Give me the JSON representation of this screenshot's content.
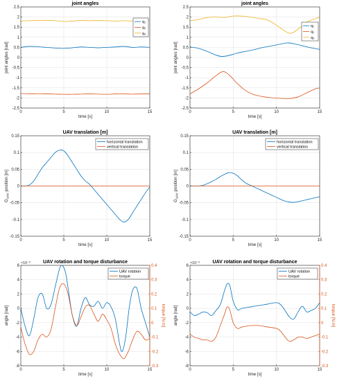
{
  "colors": {
    "blue": "#0072BD",
    "orange": "#D95319",
    "yellow": "#EDB120",
    "axis": "#262626"
  },
  "chart_data": [
    {
      "id": "p1",
      "type": "line",
      "title": "joint angles",
      "xlabel": "time [s]",
      "ylabel": "joint angles [rad]",
      "xlim": [
        0,
        15
      ],
      "ylim": [
        -2.5,
        2.5
      ],
      "xticks": [
        0,
        5,
        10,
        15
      ],
      "xtick_labels": [
        "0",
        "5",
        "10",
        "15"
      ],
      "yticks": [
        -2.5,
        -2,
        -1.5,
        -1,
        -0.5,
        0,
        0.5,
        1,
        1.5,
        2,
        2.5
      ],
      "ytick_labels": [
        "-2.5",
        "-2",
        "-1.5",
        "-1",
        "-0.5",
        "0",
        "0.5",
        "1",
        "1.5",
        "2",
        "2.5"
      ],
      "grid": true,
      "legend_position": "top-right",
      "series": [
        {
          "name": "q₁",
          "color": "blue",
          "x": [
            0,
            1,
            2,
            3,
            4,
            5,
            6,
            7,
            8,
            9,
            10,
            11,
            12,
            13,
            14,
            15
          ],
          "y": [
            0.5,
            0.55,
            0.53,
            0.5,
            0.47,
            0.45,
            0.48,
            0.52,
            0.5,
            0.48,
            0.5,
            0.52,
            0.55,
            0.5,
            0.52,
            0.5
          ]
        },
        {
          "name": "q₂",
          "color": "orange",
          "x": [
            0,
            1,
            2,
            3,
            4,
            5,
            6,
            7,
            8,
            9,
            10,
            11,
            12,
            13,
            14,
            15
          ],
          "y": [
            -1.78,
            -1.8,
            -1.79,
            -1.8,
            -1.81,
            -1.82,
            -1.82,
            -1.81,
            -1.8,
            -1.81,
            -1.82,
            -1.8,
            -1.8,
            -1.81,
            -1.8,
            -1.8
          ]
        },
        {
          "name": "q₃",
          "color": "yellow",
          "x": [
            0,
            1,
            2,
            3,
            4,
            5,
            6,
            7,
            8,
            9,
            10,
            11,
            12,
            13,
            14,
            15
          ],
          "y": [
            1.8,
            1.82,
            1.83,
            1.83,
            1.82,
            1.78,
            1.8,
            1.83,
            1.82,
            1.83,
            1.82,
            1.8,
            1.82,
            1.8,
            1.82,
            1.85
          ]
        }
      ]
    },
    {
      "id": "p2",
      "type": "line",
      "title": "joint angles",
      "xlabel": "time [s]",
      "ylabel": "joint angles [rad]",
      "xlim": [
        0,
        15
      ],
      "ylim": [
        -2.5,
        2.5
      ],
      "xticks": [
        0,
        5,
        10,
        15
      ],
      "xtick_labels": [
        "0",
        "5",
        "10",
        "15"
      ],
      "yticks": [
        -2.5,
        -2,
        -1.5,
        -1,
        -0.5,
        0,
        0.5,
        1,
        1.5,
        2,
        2.5
      ],
      "ytick_labels": [
        "-2.5",
        "-2",
        "-1.5",
        "-1",
        "-0.5",
        "0",
        "0.5",
        "1",
        "1.5",
        "2",
        "2.5"
      ],
      "grid": true,
      "legend_position": "top-right",
      "series": [
        {
          "name": "q₁",
          "color": "blue",
          "x": [
            0,
            1,
            2,
            3,
            3.7,
            4.5,
            5.5,
            7,
            8.5,
            10,
            11.2,
            12,
            13,
            14,
            15
          ],
          "y": [
            0.52,
            0.45,
            0.3,
            0.12,
            0.05,
            0.1,
            0.22,
            0.35,
            0.5,
            0.62,
            0.72,
            0.68,
            0.58,
            0.48,
            0.4
          ]
        },
        {
          "name": "q₂",
          "color": "orange",
          "x": [
            0,
            1,
            2,
            3,
            3.8,
            4.5,
            5.5,
            6.5,
            7.5,
            9,
            10.5,
            11.5,
            12.5,
            13.5,
            14.5,
            15
          ],
          "y": [
            -1.8,
            -1.55,
            -1.25,
            -0.9,
            -0.7,
            -0.85,
            -1.3,
            -1.65,
            -1.85,
            -1.97,
            -2.02,
            -2.03,
            -1.95,
            -1.75,
            -1.55,
            -1.5
          ]
        },
        {
          "name": "q₃",
          "color": "yellow",
          "x": [
            0,
            1,
            2,
            3,
            4,
            5,
            6,
            7,
            8,
            9,
            10,
            11,
            11.7,
            12.5,
            13.5,
            14.5,
            15
          ],
          "y": [
            1.82,
            1.88,
            1.98,
            2.0,
            1.98,
            2.05,
            2.05,
            2.0,
            1.93,
            1.85,
            1.6,
            1.3,
            1.2,
            1.4,
            1.75,
            1.92,
            2.0
          ]
        }
      ]
    },
    {
      "id": "p3",
      "type": "line",
      "title": "UAV translation [m]",
      "xlabel": "time [s]",
      "ylabel": "G_UAV position [m]",
      "xlim": [
        0,
        15
      ],
      "ylim": [
        -0.15,
        0.15
      ],
      "xticks": [
        0,
        5,
        10,
        15
      ],
      "xtick_labels": [
        "0",
        "5",
        "10",
        "15"
      ],
      "yticks": [
        -0.15,
        -0.1,
        -0.05,
        0,
        0.05,
        0.1,
        0.15
      ],
      "ytick_labels": [
        "-0.15",
        "-0.1",
        "-0.05",
        "0",
        "0.05",
        "0.1",
        "0.15"
      ],
      "grid": true,
      "legend_position": "top-right",
      "series": [
        {
          "name": "horizontal translation",
          "color": "blue",
          "x": [
            0,
            0.5,
            1,
            1.5,
            2,
            2.5,
            3,
            3.5,
            4,
            4.5,
            5,
            5.5,
            6,
            6.5,
            7,
            7.5,
            8,
            8.5,
            9,
            9.5,
            10,
            10.5,
            11,
            11.5,
            12,
            12.5,
            13,
            13.5,
            14,
            14.5,
            15
          ],
          "y": [
            0,
            0,
            0.003,
            0.015,
            0.035,
            0.055,
            0.07,
            0.085,
            0.1,
            0.107,
            0.105,
            0.09,
            0.07,
            0.05,
            0.03,
            0.015,
            0.005,
            -0.01,
            -0.025,
            -0.04,
            -0.055,
            -0.07,
            -0.085,
            -0.1,
            -0.108,
            -0.1,
            -0.08,
            -0.06,
            -0.04,
            -0.02,
            -0.003
          ]
        },
        {
          "name": "vertical translation",
          "color": "orange",
          "x": [
            0,
            15
          ],
          "y": [
            0,
            0
          ]
        }
      ]
    },
    {
      "id": "p4",
      "type": "line",
      "title": "UAV translation [m]",
      "xlabel": "time [s]",
      "ylabel": "G_UAV position [m]",
      "xlim": [
        0,
        15
      ],
      "ylim": [
        -0.15,
        0.15
      ],
      "xticks": [
        0,
        5,
        10,
        15
      ],
      "xtick_labels": [
        "0",
        "5",
        "10",
        "15"
      ],
      "yticks": [
        -0.15,
        -0.1,
        -0.05,
        0,
        0.05,
        0.1,
        0.15
      ],
      "ytick_labels": [
        "-0.15",
        "-0.1",
        "-0.05",
        "0",
        "0.05",
        "0.1",
        "0.15"
      ],
      "grid": true,
      "legend_position": "top-right",
      "series": [
        {
          "name": "horizontal translation",
          "color": "blue",
          "x": [
            0,
            0.5,
            1,
            1.5,
            2,
            2.5,
            3,
            3.5,
            4,
            4.5,
            5,
            5.5,
            6,
            6.5,
            7,
            7.5,
            8,
            8.5,
            9,
            9.5,
            10,
            10.5,
            11,
            11.5,
            12,
            12.5,
            13,
            13.5,
            14,
            14.5,
            15
          ],
          "y": [
            0,
            0,
            0,
            0.002,
            0.007,
            0.013,
            0.02,
            0.028,
            0.035,
            0.04,
            0.038,
            0.03,
            0.018,
            0.008,
            0.002,
            -0.004,
            -0.01,
            -0.016,
            -0.022,
            -0.028,
            -0.034,
            -0.04,
            -0.045,
            -0.048,
            -0.049,
            -0.047,
            -0.044,
            -0.041,
            -0.038,
            -0.035,
            -0.032
          ]
        },
        {
          "name": "vertical translation",
          "color": "orange",
          "x": [
            0,
            15
          ],
          "y": [
            0,
            0
          ]
        }
      ]
    },
    {
      "id": "p5",
      "type": "line",
      "title": "UAV rotation and torque disturbance",
      "xlabel": "time [s]",
      "ylabel": "angle [rad]",
      "ylabel_right": "torque [N.m]",
      "xlim": [
        0,
        15
      ],
      "ylim": [
        -8,
        6
      ],
      "ylim_right": [
        -0.3,
        0.4
      ],
      "y_exponent": "×10⁻³",
      "xticks": [
        0,
        5,
        10,
        15
      ],
      "xtick_labels": [
        "0",
        "5",
        "10",
        "15"
      ],
      "yticks": [
        -8,
        -6,
        -4,
        -2,
        0,
        2,
        4,
        6
      ],
      "ytick_labels": [
        "-8",
        "-6",
        "-4",
        "-2",
        "0",
        "2",
        "4",
        "6"
      ],
      "yticks_right": [
        -0.3,
        -0.2,
        -0.1,
        0,
        0.1,
        0.2,
        0.3,
        0.4
      ],
      "ytick_labels_right": [
        "-0.3",
        "-0.2",
        "-0.1",
        "0",
        "0.1",
        "0.2",
        "0.3",
        "0.4"
      ],
      "grid": true,
      "legend_position": "top-right",
      "series": [
        {
          "name": "UAV rotation",
          "color": "blue",
          "axis": "left",
          "x": [
            0,
            0.5,
            1,
            1.5,
            2,
            2.5,
            3,
            3.5,
            4,
            4.5,
            4.8,
            5.2,
            5.6,
            6,
            6.5,
            7,
            7.5,
            8,
            8.5,
            9,
            9.5,
            10,
            10.5,
            11,
            11.5,
            11.8,
            12.2,
            12.6,
            13,
            13.5,
            14,
            14.5,
            15
          ],
          "y": [
            0,
            -2.5,
            -3.8,
            -1.5,
            1.5,
            2,
            0,
            0.5,
            3,
            5.5,
            6,
            5,
            2,
            -1,
            -2.5,
            0,
            1.5,
            0.5,
            0.3,
            1,
            0,
            0.8,
            0.2,
            -1.5,
            -5,
            -6,
            -4,
            0,
            2.5,
            2.8,
            0,
            -2,
            -4
          ]
        },
        {
          "name": "torque",
          "color": "orange",
          "axis": "right",
          "x": [
            0,
            0.5,
            1,
            1.5,
            2,
            2.5,
            3,
            3.5,
            4,
            4.5,
            5,
            5.5,
            6,
            6.5,
            7,
            7.5,
            8,
            8.5,
            9,
            9.5,
            10,
            10.5,
            11,
            11.5,
            12,
            12.5,
            13,
            13.5,
            14,
            14.5,
            15
          ],
          "y": [
            -0.03,
            -0.15,
            -0.22,
            -0.2,
            -0.12,
            -0.08,
            -0.1,
            -0.05,
            0.1,
            0.24,
            0.27,
            0.2,
            0.05,
            -0.02,
            0.04,
            0.11,
            0.12,
            0.06,
            0.01,
            0.06,
            0.02,
            -0.04,
            -0.15,
            -0.22,
            -0.25,
            -0.2,
            -0.12,
            -0.06,
            -0.08,
            -0.12,
            -0.11
          ]
        }
      ]
    },
    {
      "id": "p6",
      "type": "line",
      "title": "UAV rotation and torque disturbance",
      "xlabel": "time [s]",
      "ylabel": "angle [rad]",
      "ylabel_right": "torque [N.m]",
      "xlim": [
        0,
        15
      ],
      "ylim": [
        -8,
        6
      ],
      "ylim_right": [
        -0.3,
        0.4
      ],
      "y_exponent": "×10⁻³",
      "xticks": [
        0,
        5,
        10,
        15
      ],
      "xtick_labels": [
        "0",
        "5",
        "10",
        "15"
      ],
      "yticks": [
        -8,
        -6,
        -4,
        -2,
        0,
        2,
        4,
        6
      ],
      "ytick_labels": [
        "-8",
        "-6",
        "-4",
        "-2",
        "0",
        "2",
        "4",
        "6"
      ],
      "yticks_right": [
        -0.3,
        -0.2,
        -0.1,
        0,
        0.1,
        0.2,
        0.3,
        0.4
      ],
      "ytick_labels_right": [
        "-0.3",
        "-0.2",
        "-0.1",
        "0",
        "0.1",
        "0.2",
        "0.3",
        "0.4"
      ],
      "grid": true,
      "legend_position": "top-right",
      "series": [
        {
          "name": "UAV rotation",
          "color": "blue",
          "axis": "left",
          "x": [
            0,
            0.5,
            1,
            1.5,
            2,
            2.5,
            3,
            3.5,
            4,
            4.3,
            4.6,
            5,
            5.5,
            6,
            7,
            8,
            9,
            10,
            10.5,
            11,
            11.5,
            12,
            12.5,
            13,
            13.5,
            14,
            14.5,
            15
          ],
          "y": [
            -0.5,
            -1,
            -0.8,
            -0.5,
            -0.6,
            -1,
            -0.3,
            0.5,
            2.5,
            3.4,
            3.2,
            1,
            -0.2,
            0,
            0.2,
            0.4,
            0.6,
            0.8,
            0.5,
            -0.3,
            -1.2,
            -1.5,
            -0.5,
            0.3,
            -0.5,
            -0.3,
            0,
            0.8
          ]
        },
        {
          "name": "torque",
          "color": "orange",
          "axis": "right",
          "x": [
            0,
            0.5,
            1,
            1.5,
            2,
            2.5,
            3,
            3.5,
            4,
            4.3,
            4.6,
            5,
            5.5,
            6,
            7,
            8,
            9,
            10,
            10.5,
            11,
            11.5,
            12,
            12.5,
            13,
            13.5,
            14,
            14.5,
            15
          ],
          "y": [
            -0.08,
            -0.1,
            -0.11,
            -0.12,
            -0.12,
            -0.13,
            -0.1,
            -0.02,
            0.06,
            0.11,
            0.09,
            0.0,
            -0.04,
            -0.03,
            -0.02,
            -0.02,
            -0.03,
            -0.04,
            -0.06,
            -0.1,
            -0.13,
            -0.12,
            -0.1,
            -0.1,
            -0.11,
            -0.1,
            -0.09,
            -0.08
          ]
        }
      ]
    }
  ]
}
